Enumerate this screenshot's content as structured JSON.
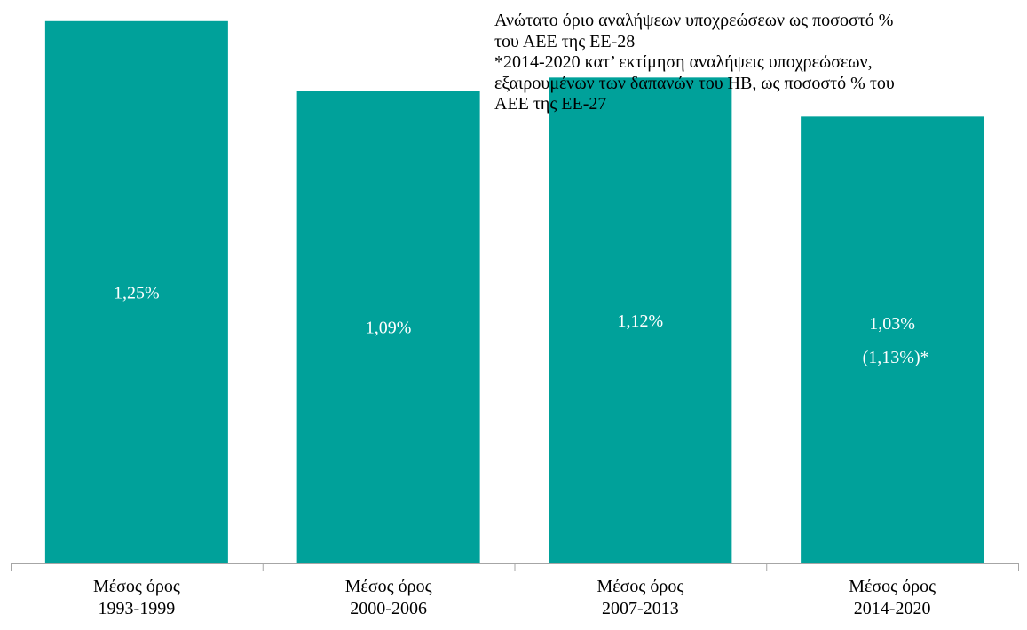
{
  "chart_data": {
    "type": "bar",
    "categories": [
      [
        "Μέσος όρος",
        "1993-1999"
      ],
      [
        "Μέσος όρος",
        "2000-2006"
      ],
      [
        "Μέσος όρος",
        "2007-2013"
      ],
      [
        "Μέσος όρος",
        "2014-2020"
      ]
    ],
    "values": [
      1.25,
      1.09,
      1.12,
      1.03
    ],
    "data_labels": [
      [
        "1,25%"
      ],
      [
        "1,09%"
      ],
      [
        "1,12%"
      ],
      [
        "1,03%",
        "(1,13%)*"
      ]
    ],
    "ylim": [
      0,
      1.27
    ],
    "grid": false,
    "legend": "none",
    "bar_color": "#00A19A",
    "axis_color": "#A6A6A6",
    "annotation": [
      "Ανώτατο όριο αναλήψεων υποχρεώσεων ως ποσοστό %",
      "του ΑΕΕ της ΕΕ-28",
      "*2014-2020 κατ’ εκτίμηση αναλήψεις υποχρεώσεων,",
      "εξαιρουμένων των δαπανών του ΗΒ, ως ποσοστό % του",
      "ΑΕΕ της ΕΕ-27"
    ]
  }
}
